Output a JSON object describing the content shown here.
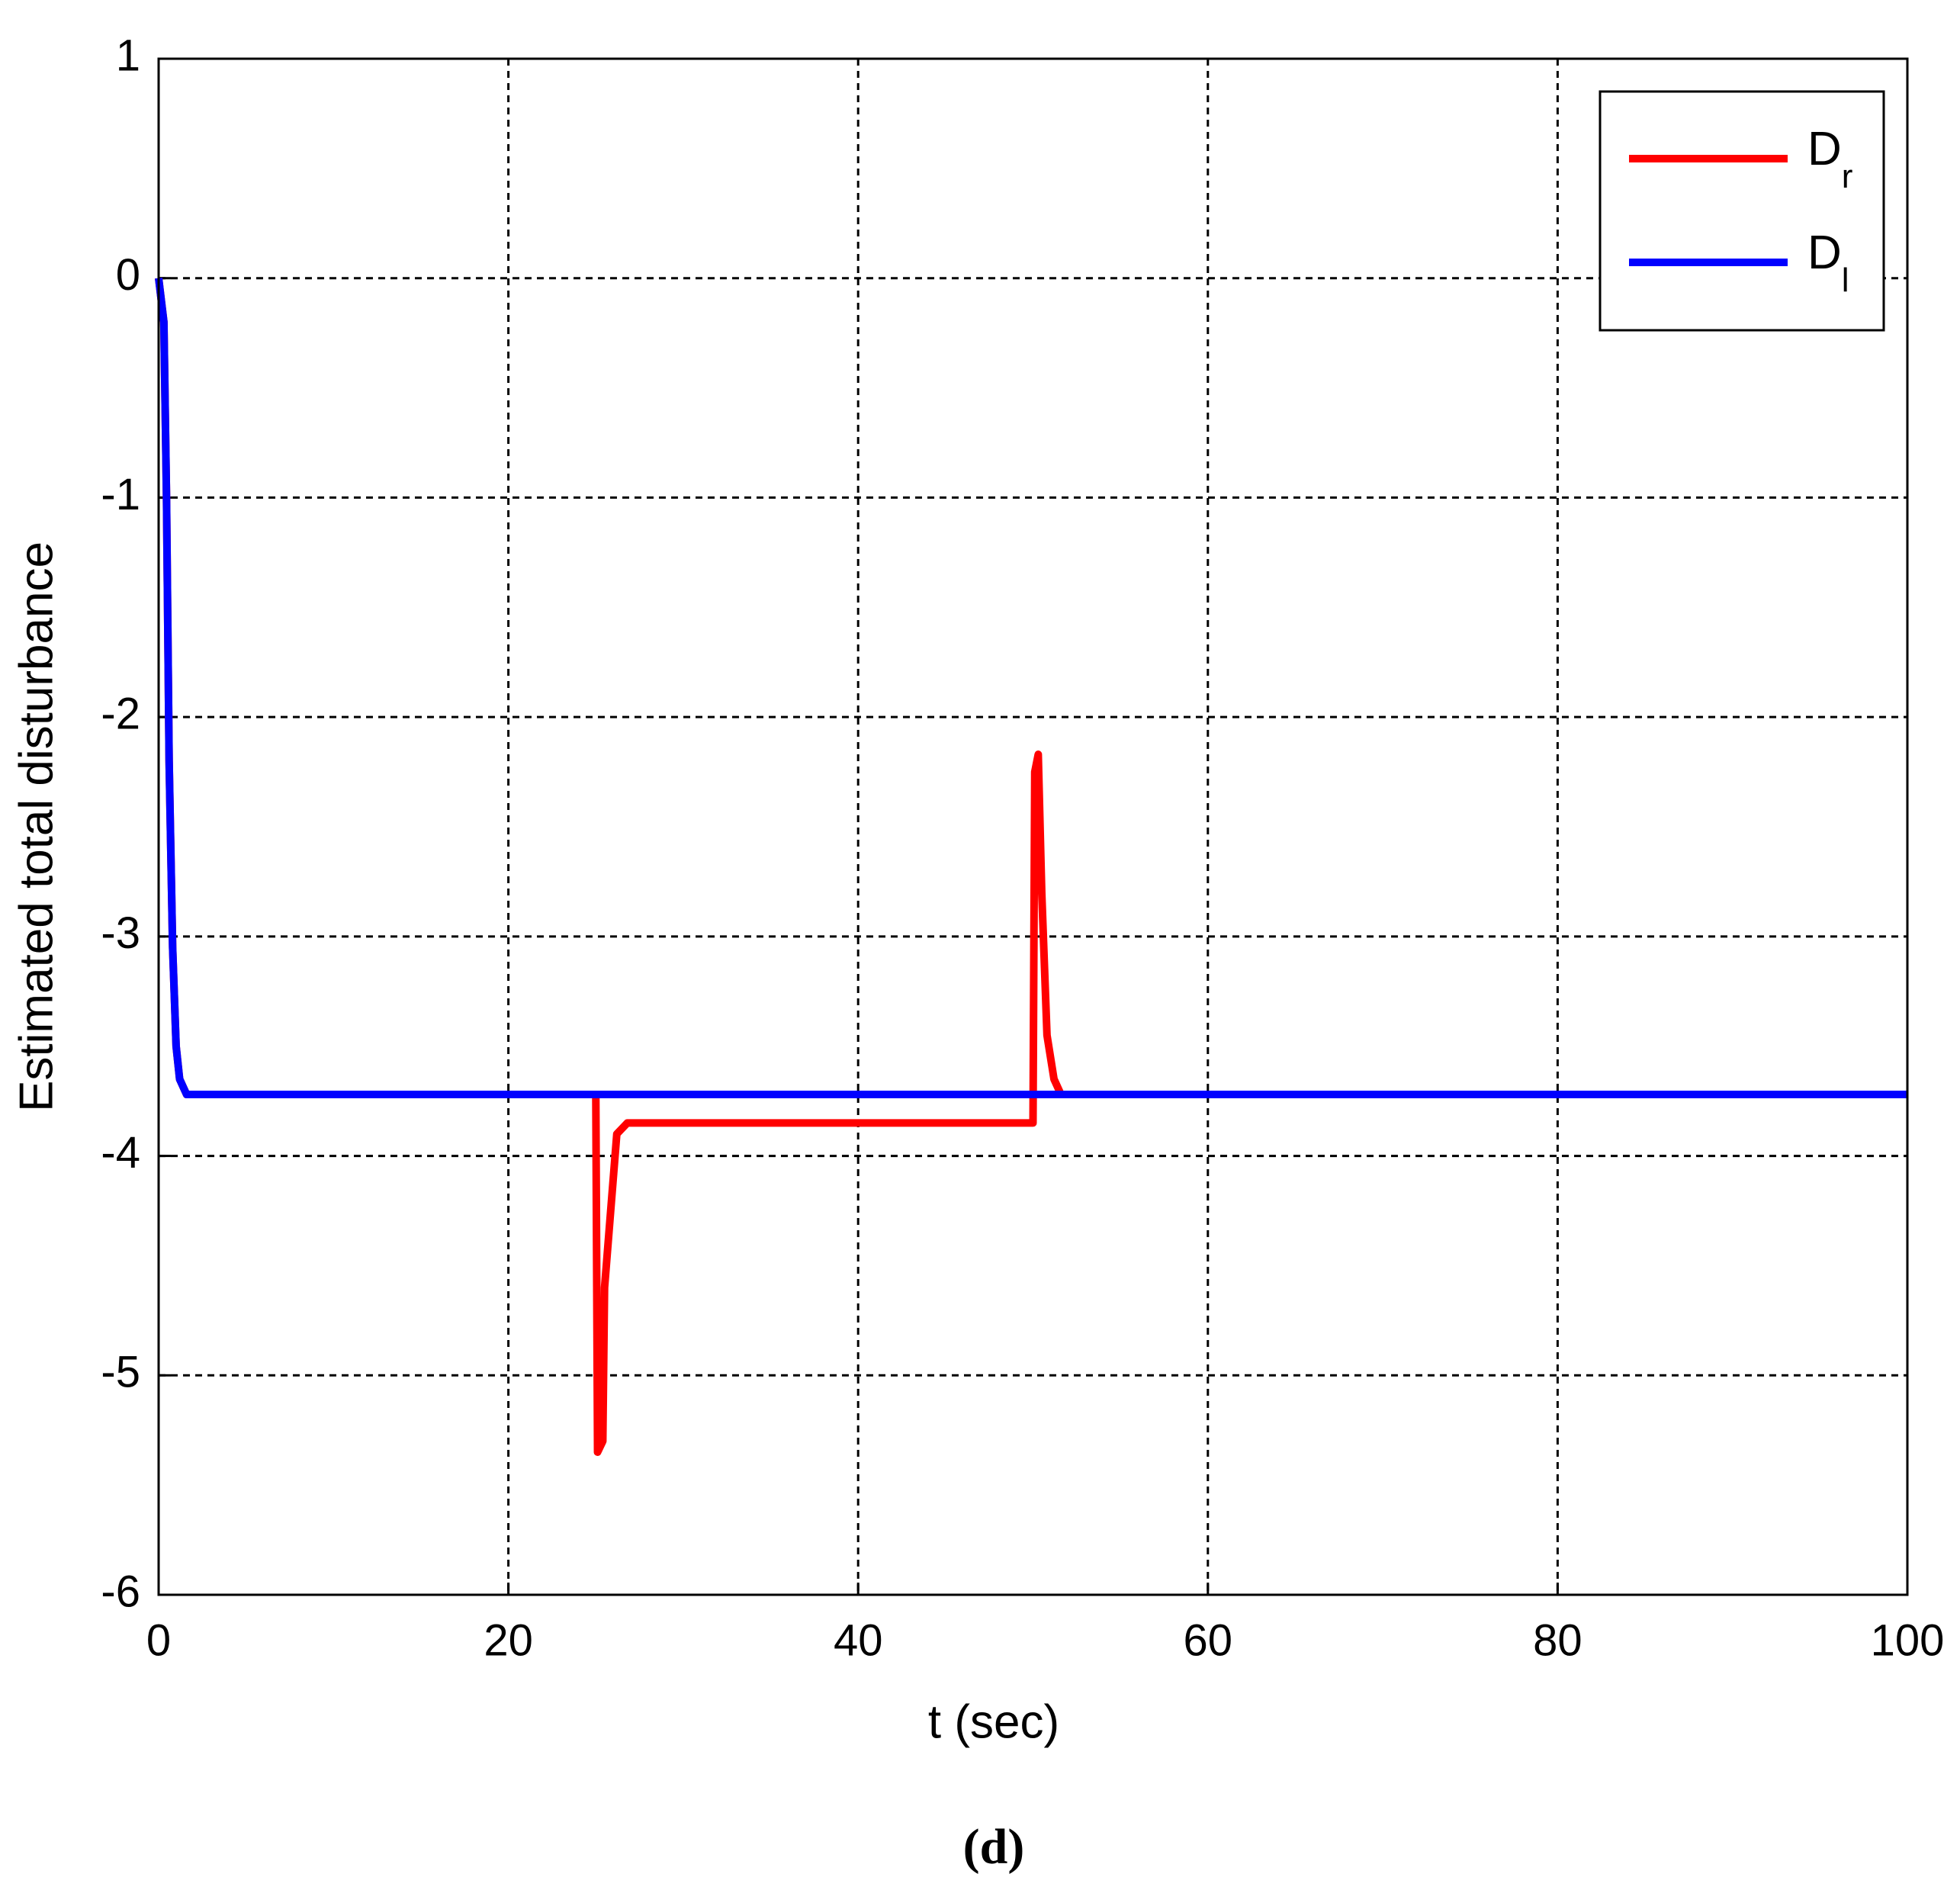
{
  "chart_data": {
    "type": "line",
    "xlabel": "t (sec)",
    "ylabel": "Estimated total disturbance",
    "caption": "(d)",
    "xlim": [
      0,
      100
    ],
    "xticks": [
      0,
      20,
      40,
      60,
      80,
      100
    ],
    "ylim": [
      -6,
      1
    ],
    "yticks": [
      -6,
      -5,
      -4,
      -3,
      -2,
      -1,
      0,
      1
    ],
    "grid": true,
    "legend": "upper right",
    "series": [
      {
        "name": "Dr",
        "color": "#ff0000",
        "x": [
          0,
          0.3,
          0.45,
          0.6,
          0.8,
          1.0,
          1.2,
          1.6,
          25,
          25.1,
          25.4,
          25.5,
          25.8,
          26.2,
          26.8,
          50,
          50.1,
          50.3,
          50.5,
          50.8,
          51.2,
          51.6,
          100
        ],
        "values": [
          0,
          -0.2,
          -1,
          -2.2,
          -3.05,
          -3.5,
          -3.65,
          -3.72,
          -3.72,
          -5.35,
          -5.3,
          -4.6,
          -4.3,
          -3.9,
          -3.85,
          -3.85,
          -2.25,
          -2.17,
          -2.8,
          -3.45,
          -3.65,
          -3.72,
          -3.72
        ]
      },
      {
        "name": "Dl",
        "color": "#0000ff",
        "x": [
          0,
          0.3,
          0.45,
          0.6,
          0.8,
          1.0,
          1.2,
          1.6,
          100
        ],
        "values": [
          0,
          -0.2,
          -1,
          -2.2,
          -3.05,
          -3.5,
          -3.65,
          -3.72,
          -3.72
        ]
      }
    ]
  }
}
